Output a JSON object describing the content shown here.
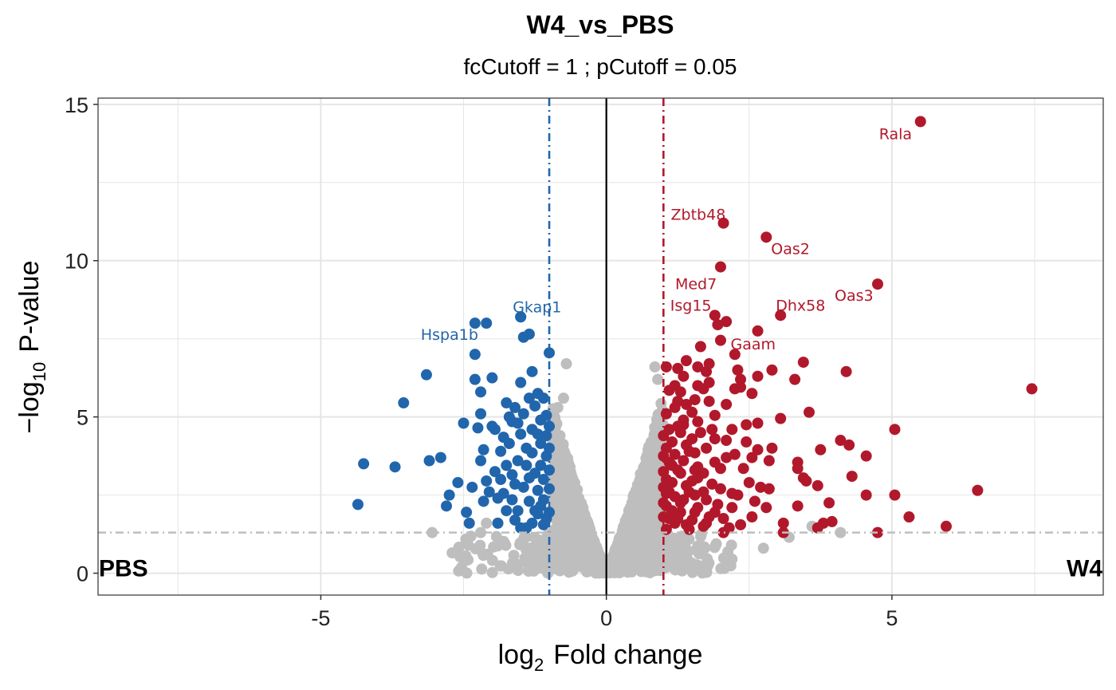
{
  "chart_data": {
    "type": "scatter",
    "title": "W4_vs_PBS",
    "subtitle": "fcCutoff = 1  ;  pCutoff = 0.05",
    "xlabel": {
      "base": "log",
      "sub": "2",
      "text": "Fold change"
    },
    "ylabel": {
      "prefix": "−log",
      "sub": "10",
      "text": "P-value"
    },
    "xlim": [
      -8.9,
      8.7
    ],
    "ylim": [
      -0.7,
      15.2
    ],
    "x_ticks": [
      -5,
      0,
      5
    ],
    "x_tick_labels": [
      "-5",
      "0",
      "5"
    ],
    "y_ticks": [
      0,
      5,
      10,
      15
    ],
    "y_tick_labels": [
      "0",
      "5",
      "10",
      "15"
    ],
    "fc_cutoff": 1,
    "p_cutoff": 0.05,
    "p_cutoff_log": 1.3,
    "colors": {
      "up": "#B2182B",
      "down": "#2166AC",
      "ns": "#BEBEBE",
      "grid": "#E5E5E5",
      "zero": "#000000"
    },
    "group_labels": {
      "left": "PBS",
      "right": "W4"
    },
    "labeled_genes": [
      {
        "gene": "Rala",
        "x": 5.5,
        "y": 14.45,
        "group": "up"
      },
      {
        "gene": "Zbtb48",
        "x": 2.05,
        "y": 11.2,
        "group": "up"
      },
      {
        "gene": "Oas2",
        "x": 2.8,
        "y": 10.75,
        "group": "up"
      },
      {
        "gene": "Med7",
        "x": 2.0,
        "y": 9.8,
        "group": "up"
      },
      {
        "gene": "Oas3",
        "x": 4.75,
        "y": 9.25,
        "group": "up"
      },
      {
        "gene": "Isg15",
        "x": 1.9,
        "y": 8.25,
        "group": "up"
      },
      {
        "gene": "Dhx58",
        "x": 3.05,
        "y": 8.25,
        "group": "up"
      },
      {
        "gene": "Gaam",
        "x": 2.65,
        "y": 7.75,
        "group": "up"
      },
      {
        "gene": "Gkap1",
        "x": -1.5,
        "y": 8.2,
        "group": "down"
      },
      {
        "gene": "Hspa1b",
        "x": -2.3,
        "y": 8.0,
        "group": "down"
      }
    ],
    "series": [
      {
        "name": "Up-regulated",
        "color": "#B2182B",
        "points": [
          [
            7.45,
            5.9
          ],
          [
            6.5,
            2.65
          ],
          [
            5.05,
            4.6
          ],
          [
            5.05,
            2.5
          ],
          [
            5.3,
            1.8
          ],
          [
            5.95,
            1.5
          ],
          [
            4.75,
            1.3
          ],
          [
            4.55,
            3.75
          ],
          [
            4.55,
            2.5
          ],
          [
            4.3,
            3.1
          ],
          [
            4.2,
            6.45
          ],
          [
            4.1,
            4.25
          ],
          [
            4.25,
            4.1
          ],
          [
            3.75,
            3.95
          ],
          [
            3.9,
            2.25
          ],
          [
            3.95,
            1.65
          ],
          [
            3.7,
            2.8
          ],
          [
            3.55,
            5.15
          ],
          [
            3.45,
            3.05
          ],
          [
            3.5,
            2.95
          ],
          [
            3.35,
            3.35
          ],
          [
            3.35,
            3.55
          ],
          [
            3.35,
            2.15
          ],
          [
            3.1,
            1.6
          ],
          [
            3.1,
            1.3
          ],
          [
            3.7,
            1.45
          ],
          [
            3.8,
            1.6
          ],
          [
            3.45,
            6.75
          ],
          [
            3.3,
            6.2
          ],
          [
            3.05,
            4.95
          ],
          [
            2.9,
            6.5
          ],
          [
            2.65,
            6.3
          ],
          [
            2.55,
            5.75
          ],
          [
            2.65,
            4.8
          ],
          [
            2.9,
            4.0
          ],
          [
            2.65,
            3.95
          ],
          [
            2.85,
            3.6
          ],
          [
            2.55,
            3.7
          ],
          [
            2.4,
            3.35
          ],
          [
            2.25,
            3.8
          ],
          [
            2.5,
            2.9
          ],
          [
            2.7,
            2.75
          ],
          [
            2.85,
            2.7
          ],
          [
            2.3,
            2.5
          ],
          [
            2.6,
            2.3
          ],
          [
            2.8,
            2.1
          ],
          [
            2.55,
            1.8
          ],
          [
            2.35,
            1.55
          ],
          [
            2.15,
            1.45
          ],
          [
            2.05,
            1.3
          ],
          [
            2.2,
            2.1
          ],
          [
            2.3,
            6.5
          ],
          [
            2.35,
            6.2
          ],
          [
            2.25,
            5.9
          ],
          [
            2.35,
            5.95
          ],
          [
            2.25,
            7.0
          ],
          [
            2.0,
            7.45
          ],
          [
            2.1,
            8.05
          ],
          [
            1.95,
            7.95
          ],
          [
            2.1,
            5.4
          ],
          [
            2.2,
            4.6
          ],
          [
            2.1,
            4.25
          ],
          [
            2.1,
            3.7
          ],
          [
            2.0,
            2.7
          ],
          [
            2.2,
            2.55
          ],
          [
            2.45,
            4.75
          ],
          [
            2.45,
            4.2
          ],
          [
            1.8,
            6.7
          ],
          [
            1.75,
            6.45
          ],
          [
            1.7,
            5.9
          ],
          [
            1.8,
            5.5
          ],
          [
            1.9,
            5.05
          ],
          [
            1.85,
            4.6
          ],
          [
            1.75,
            4.0
          ],
          [
            1.9,
            3.55
          ],
          [
            1.7,
            3.2
          ],
          [
            1.85,
            2.85
          ],
          [
            1.95,
            2.2
          ],
          [
            1.8,
            1.8
          ],
          [
            1.7,
            1.5
          ],
          [
            1.6,
            6.6
          ],
          [
            1.6,
            6.0
          ],
          [
            1.55,
            5.55
          ],
          [
            1.5,
            5.15
          ],
          [
            1.6,
            4.85
          ],
          [
            1.5,
            4.3
          ],
          [
            1.55,
            3.85
          ],
          [
            1.6,
            3.4
          ],
          [
            1.5,
            2.95
          ],
          [
            1.55,
            2.5
          ],
          [
            1.6,
            2.1
          ],
          [
            1.5,
            1.7
          ],
          [
            1.45,
            1.4
          ],
          [
            1.4,
            6.8
          ],
          [
            1.35,
            6.3
          ],
          [
            1.3,
            5.8
          ],
          [
            1.4,
            5.4
          ],
          [
            1.35,
            4.9
          ],
          [
            1.3,
            4.5
          ],
          [
            1.4,
            4.1
          ],
          [
            1.35,
            3.6
          ],
          [
            1.3,
            3.2
          ],
          [
            1.4,
            2.8
          ],
          [
            1.35,
            2.35
          ],
          [
            1.3,
            1.95
          ],
          [
            1.4,
            1.55
          ],
          [
            1.25,
            6.55
          ],
          [
            1.2,
            6.0
          ],
          [
            1.2,
            5.3
          ],
          [
            1.25,
            4.7
          ],
          [
            1.15,
            4.2
          ],
          [
            1.2,
            3.8
          ],
          [
            1.25,
            3.3
          ],
          [
            1.15,
            2.9
          ],
          [
            1.2,
            2.45
          ],
          [
            1.15,
            2.0
          ],
          [
            1.2,
            1.6
          ],
          [
            1.1,
            5.85
          ],
          [
            1.05,
            5.1
          ],
          [
            1.1,
            4.6
          ],
          [
            1.05,
            4.0
          ],
          [
            1.1,
            3.55
          ],
          [
            1.05,
            3.0
          ],
          [
            1.1,
            2.6
          ],
          [
            1.05,
            2.15
          ],
          [
            1.1,
            1.75
          ],
          [
            1.05,
            1.4
          ],
          [
            1.0,
            4.4
          ],
          [
            1.0,
            3.75
          ],
          [
            1.0,
            3.25
          ],
          [
            1.0,
            2.75
          ],
          [
            1.0,
            2.25
          ],
          [
            1.0,
            1.8
          ],
          [
            1.05,
            6.6
          ],
          [
            1.65,
            7.25
          ],
          [
            1.8,
            6.1
          ],
          [
            1.6,
            3.05
          ],
          [
            1.45,
            2.6
          ],
          [
            1.3,
            2.25
          ],
          [
            1.75,
            2.35
          ],
          [
            1.9,
            4.3
          ],
          [
            2.0,
            3.35
          ],
          [
            1.65,
            4.5
          ],
          [
            1.55,
            3.3
          ],
          [
            1.45,
            3.9
          ],
          [
            1.35,
            4.75
          ],
          [
            1.25,
            5.5
          ],
          [
            1.15,
            3.45
          ],
          [
            1.05,
            2.55
          ],
          [
            1.25,
            1.75
          ],
          [
            1.55,
            1.95
          ],
          [
            1.75,
            1.6
          ],
          [
            1.9,
            1.95
          ],
          [
            2.05,
            1.75
          ],
          [
            1.7,
            2.6
          ]
        ]
      },
      {
        "name": "Down-regulated",
        "color": "#2166AC",
        "points": [
          [
            -4.35,
            2.2
          ],
          [
            -4.25,
            3.5
          ],
          [
            -3.7,
            3.4
          ],
          [
            -3.55,
            5.45
          ],
          [
            -3.1,
            3.6
          ],
          [
            -2.9,
            3.7
          ],
          [
            -3.15,
            6.35
          ],
          [
            -2.75,
            2.5
          ],
          [
            -2.6,
            2.9
          ],
          [
            -2.8,
            2.15
          ],
          [
            -2.5,
            4.8
          ],
          [
            -2.35,
            2.75
          ],
          [
            -2.45,
            1.95
          ],
          [
            -2.4,
            1.6
          ],
          [
            -2.25,
            4.65
          ],
          [
            -2.15,
            3.95
          ],
          [
            -2.2,
            3.6
          ],
          [
            -2.3,
            7.0
          ],
          [
            -2.3,
            6.2
          ],
          [
            -2.2,
            5.8
          ],
          [
            -2.2,
            5.1
          ],
          [
            -2.1,
            8.0
          ],
          [
            -2.0,
            6.25
          ],
          [
            -2.1,
            2.95
          ],
          [
            -2.15,
            2.3
          ],
          [
            -1.9,
            2.4
          ],
          [
            -1.85,
            3.0
          ],
          [
            -1.95,
            4.6
          ],
          [
            -1.9,
            1.6
          ],
          [
            -1.8,
            2.55
          ],
          [
            -1.75,
            3.45
          ],
          [
            -1.7,
            4.15
          ],
          [
            -1.65,
            4.85
          ],
          [
            -1.75,
            5.45
          ],
          [
            -1.6,
            1.7
          ],
          [
            -1.55,
            2.0
          ],
          [
            -1.6,
            2.85
          ],
          [
            -1.55,
            3.6
          ],
          [
            -1.5,
            4.45
          ],
          [
            -1.45,
            5.1
          ],
          [
            -1.5,
            6.1
          ],
          [
            -1.45,
            7.55
          ],
          [
            -1.35,
            7.65
          ],
          [
            -1.3,
            6.45
          ],
          [
            -1.5,
            8.2
          ],
          [
            -1.4,
            1.45
          ],
          [
            -1.35,
            2.3
          ],
          [
            -1.35,
            3.05
          ],
          [
            -1.3,
            3.85
          ],
          [
            -1.3,
            4.6
          ],
          [
            -1.25,
            5.35
          ],
          [
            -1.2,
            5.75
          ],
          [
            -1.2,
            2.65
          ],
          [
            -1.2,
            1.9
          ],
          [
            -1.15,
            3.45
          ],
          [
            -1.15,
            4.15
          ],
          [
            -1.15,
            4.9
          ],
          [
            -1.1,
            5.6
          ],
          [
            -1.1,
            1.55
          ],
          [
            -1.1,
            2.35
          ],
          [
            -1.1,
            3.0
          ],
          [
            -1.05,
            3.75
          ],
          [
            -1.05,
            4.4
          ],
          [
            -1.05,
            5.05
          ],
          [
            -1.0,
            7.05
          ],
          [
            -1.0,
            1.95
          ],
          [
            -1.0,
            2.7
          ],
          [
            -1.0,
            3.3
          ],
          [
            -1.0,
            4.0
          ],
          [
            -1.0,
            4.7
          ],
          [
            -1.4,
            4.0
          ],
          [
            -1.25,
            3.2
          ],
          [
            -1.6,
            5.3
          ],
          [
            -1.75,
            2.0
          ],
          [
            -2.0,
            4.7
          ],
          [
            -1.85,
            3.9
          ],
          [
            -1.65,
            2.35
          ],
          [
            -1.45,
            2.75
          ],
          [
            -1.25,
            2.0
          ],
          [
            -1.2,
            4.45
          ],
          [
            -1.35,
            5.6
          ],
          [
            -1.55,
            4.8
          ],
          [
            -1.7,
            5.0
          ],
          [
            -1.8,
            4.35
          ],
          [
            -1.95,
            3.25
          ],
          [
            -2.05,
            2.6
          ],
          [
            -1.65,
            3.15
          ],
          [
            -1.4,
            3.45
          ],
          [
            -1.3,
            1.6
          ],
          [
            -1.15,
            2.15
          ],
          [
            -1.05,
            1.75
          ],
          [
            -1.5,
            1.45
          ]
        ]
      }
    ]
  }
}
